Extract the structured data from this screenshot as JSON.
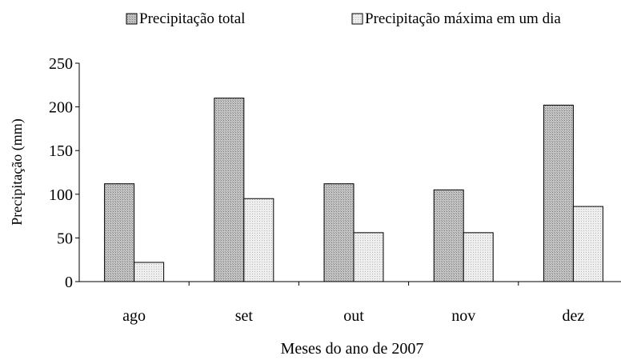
{
  "chart_data": {
    "type": "bar",
    "categories": [
      "ago",
      "set",
      "out",
      "nov",
      "dez"
    ],
    "series": [
      {
        "name": "Precipitação total",
        "values": [
          112,
          210,
          112,
          105,
          202
        ]
      },
      {
        "name": "Precipitação máxima em um dia",
        "values": [
          22,
          95,
          56,
          56,
          86
        ]
      }
    ],
    "xlabel": "Meses do ano de 2007",
    "ylabel": "Precipitação (mm)",
    "ylim": [
      0,
      250
    ],
    "yticks": [
      0,
      50,
      100,
      150,
      200,
      250
    ],
    "grid": false,
    "legend": "top",
    "colors": {
      "series_0": "#b0b0b0",
      "series_1": "#e0e0e0",
      "stroke": "#000000"
    }
  }
}
